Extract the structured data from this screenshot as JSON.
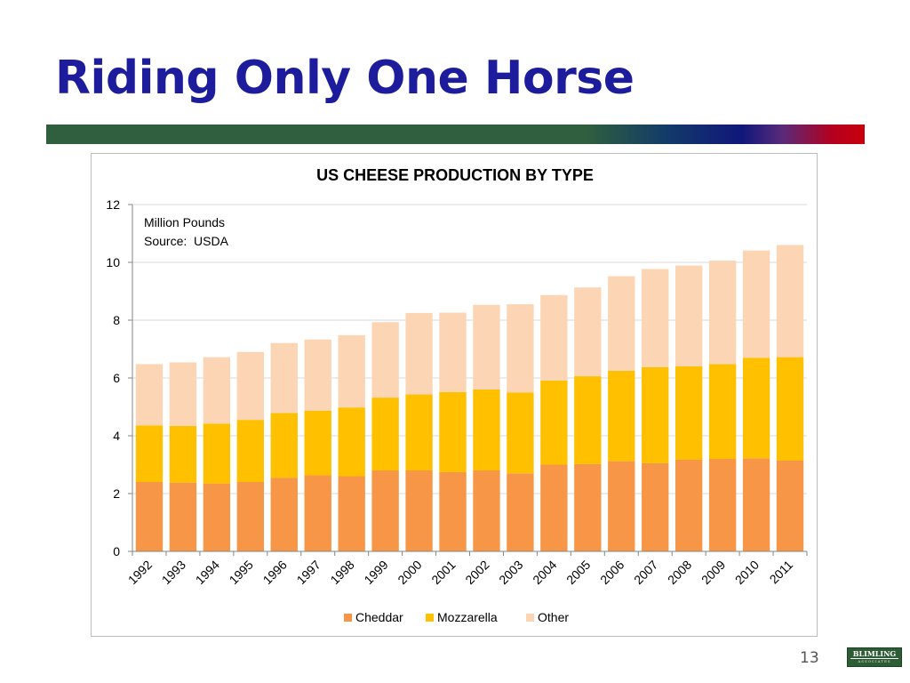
{
  "slide": {
    "title": "Riding Only One Horse",
    "page_number": "13",
    "logo_text": "BLIMLING",
    "logo_subtext": "ASSOCIATES"
  },
  "colors": {
    "title": "#1c1c9c",
    "bar_green": "#2f5f3e",
    "bar_red": "#c8000c",
    "cheddar": "#f79646",
    "mozzarella": "#ffc000",
    "other": "#fcd5b5"
  },
  "chart_data": {
    "type": "bar",
    "stacked": true,
    "title": "US CHEESE PRODUCTION BY TYPE",
    "annotation_lines": [
      "Million Pounds",
      "Source:  USDA"
    ],
    "categories": [
      "1992",
      "1993",
      "1994",
      "1995",
      "1996",
      "1997",
      "1998",
      "1999",
      "2000",
      "2001",
      "2002",
      "2003",
      "2004",
      "2005",
      "2006",
      "2007",
      "2008",
      "2009",
      "2010",
      "2011"
    ],
    "series": [
      {
        "name": "Cheddar",
        "values": [
          2.4,
          2.38,
          2.35,
          2.4,
          2.55,
          2.63,
          2.6,
          2.8,
          2.8,
          2.74,
          2.8,
          2.7,
          3.0,
          3.02,
          3.12,
          3.05,
          3.17,
          3.2,
          3.22,
          3.14
        ]
      },
      {
        "name": "Mozzarella",
        "values": [
          1.96,
          1.96,
          2.07,
          2.15,
          2.24,
          2.24,
          2.38,
          2.52,
          2.63,
          2.77,
          2.8,
          2.8,
          2.91,
          3.04,
          3.13,
          3.32,
          3.23,
          3.28,
          3.48,
          3.58
        ]
      },
      {
        "name": "Other",
        "values": [
          2.12,
          2.2,
          2.3,
          2.35,
          2.42,
          2.46,
          2.5,
          2.61,
          2.82,
          2.75,
          2.93,
          3.05,
          2.96,
          3.07,
          3.27,
          3.4,
          3.49,
          3.58,
          3.71,
          3.88
        ]
      }
    ],
    "ylim": [
      0,
      12
    ],
    "yticks": [
      "0",
      "2",
      "4",
      "6",
      "8",
      "10",
      "12"
    ],
    "grid": true,
    "legend_position": "bottom"
  }
}
